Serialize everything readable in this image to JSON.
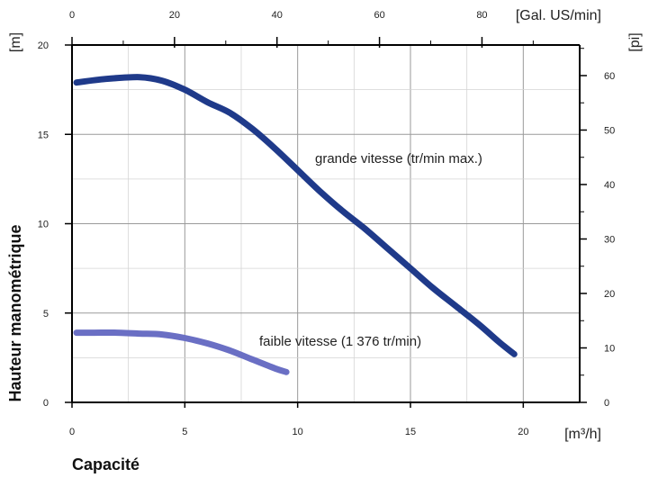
{
  "chart_data": {
    "type": "line",
    "x": {
      "label": "Capacité",
      "unit": "[m³/h]",
      "range": [
        0,
        22.5
      ],
      "ticks": [
        0,
        5,
        10,
        15,
        20
      ]
    },
    "x_top": {
      "unit": "[Gal. US/min]",
      "factor": 4.403,
      "ticks": [
        0,
        20,
        40,
        60,
        80
      ]
    },
    "y": {
      "label": "Hauteur manométrique",
      "unit": "[m]",
      "range": [
        0,
        20
      ],
      "ticks": [
        0,
        5,
        10,
        15,
        20
      ]
    },
    "y_right": {
      "unit": "[pi]",
      "factor": 3.2808,
      "ticks": [
        0,
        10,
        20,
        30,
        40,
        50,
        60
      ]
    },
    "grid": true,
    "series": [
      {
        "name": "grande vitesse (tr/min max.)",
        "color": "#1f3a8a",
        "points": [
          [
            0.2,
            17.9
          ],
          [
            1.5,
            18.1
          ],
          [
            3.0,
            18.2
          ],
          [
            4.0,
            18.0
          ],
          [
            5.0,
            17.5
          ],
          [
            6.0,
            16.8
          ],
          [
            7.0,
            16.2
          ],
          [
            8.0,
            15.3
          ],
          [
            9.0,
            14.2
          ],
          [
            10.0,
            13.0
          ],
          [
            11.0,
            11.8
          ],
          [
            12.0,
            10.7
          ],
          [
            13.0,
            9.7
          ],
          [
            14.0,
            8.6
          ],
          [
            15.0,
            7.5
          ],
          [
            16.0,
            6.4
          ],
          [
            17.0,
            5.4
          ],
          [
            18.0,
            4.4
          ],
          [
            19.0,
            3.3
          ],
          [
            19.6,
            2.7
          ]
        ]
      },
      {
        "name": "faible vitesse (1 376 tr/min)",
        "color": "#6a6fc4",
        "points": [
          [
            0.2,
            3.9
          ],
          [
            1.0,
            3.9
          ],
          [
            2.0,
            3.9
          ],
          [
            3.0,
            3.85
          ],
          [
            4.0,
            3.8
          ],
          [
            5.0,
            3.6
          ],
          [
            6.0,
            3.3
          ],
          [
            7.0,
            2.9
          ],
          [
            8.0,
            2.4
          ],
          [
            9.0,
            1.9
          ],
          [
            9.5,
            1.7
          ]
        ]
      }
    ]
  }
}
